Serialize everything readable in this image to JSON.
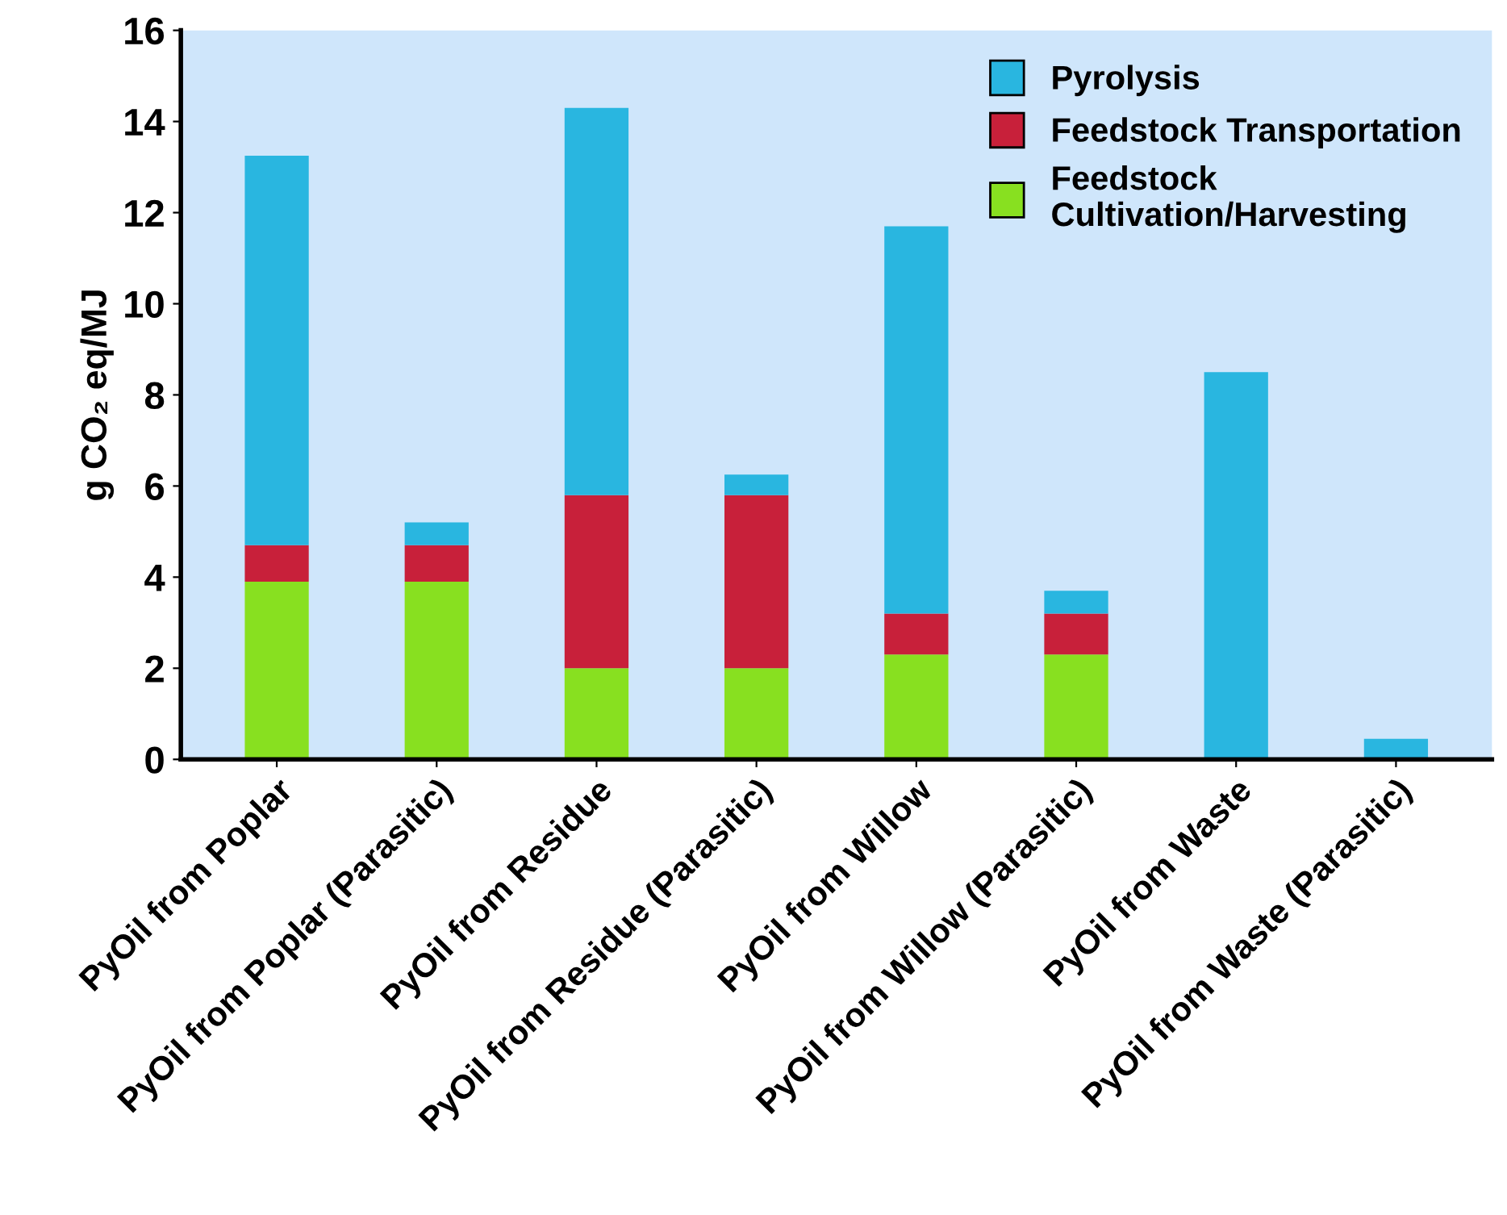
{
  "chart_data": {
    "type": "bar",
    "stacked": true,
    "ylabel": "g CO₂ eq/MJ",
    "categories": [
      "PyOil from Poplar",
      "PyOil from Poplar (Parasitic)",
      "PyOil from Residue",
      "PyOil from Residue (Parasitic)",
      "PyOil from Willow",
      "PyOil from Willow (Parasitic)",
      "PyOil from Waste",
      "PyOil from Waste (Parasitic)"
    ],
    "series": [
      {
        "name": "Feedstock\nCultivation/Harvesting",
        "color": "#88e020",
        "values": [
          3.9,
          3.9,
          2.0,
          2.0,
          2.3,
          2.3,
          0,
          0
        ]
      },
      {
        "name": "Feedstock Transportation",
        "color": "#c8203a",
        "values": [
          0.8,
          0.8,
          3.8,
          3.8,
          0.9,
          0.9,
          0,
          0
        ]
      },
      {
        "name": "Pyrolysis",
        "color": "#29b6e0",
        "values": [
          8.55,
          0.5,
          8.5,
          0.45,
          8.5,
          0.5,
          8.5,
          0.45
        ]
      }
    ],
    "ylim": [
      0,
      16
    ],
    "yticks": [
      0,
      2,
      4,
      6,
      8,
      10,
      12,
      14,
      16
    ],
    "grid": false,
    "legend": "top right"
  }
}
